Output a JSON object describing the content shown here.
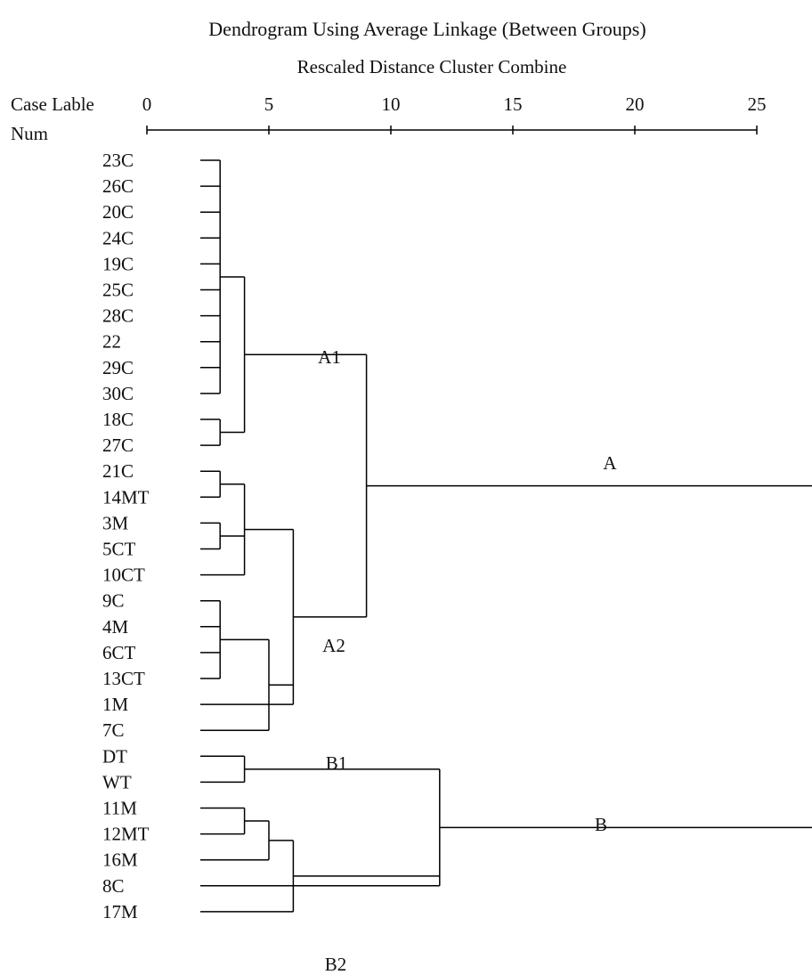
{
  "title": "Dendrogram Using Average Linkage (Between Groups)",
  "subtitle": "Rescaled Distance Cluster Combine",
  "header_case": "Case Lable",
  "header_num": "Num",
  "axis_ticks": [
    0,
    5,
    10,
    15,
    20,
    25
  ],
  "leaves": [
    "23C",
    "26C",
    "20C",
    "24C",
    "19C",
    "25C",
    "28C",
    "22",
    "29C",
    "30C",
    "18C",
    "27C",
    "21C",
    "14MT",
    "3M",
    "5CT",
    "10CT",
    "9C",
    "4M",
    "6CT",
    "13CT",
    "1M",
    "7C",
    "DT",
    "WT",
    "11M",
    "12MT",
    "16M",
    "8C",
    "17M"
  ],
  "cluster_labels": [
    "A1",
    "A2",
    "A",
    "B1",
    "B",
    "B2"
  ],
  "chart_data": {
    "type": "dendrogram",
    "title": "Dendrogram Using Average Linkage (Between Groups)",
    "xlabel": "Rescaled Distance Cluster Combine",
    "xlim": [
      0,
      25
    ],
    "ticks": [
      0,
      5,
      10,
      15,
      20,
      25
    ],
    "leaves": [
      "23C",
      "26C",
      "20C",
      "24C",
      "19C",
      "25C",
      "28C",
      "22",
      "29C",
      "30C",
      "18C",
      "27C",
      "21C",
      "14MT",
      "3M",
      "5CT",
      "10CT",
      "9C",
      "4M",
      "6CT",
      "13CT",
      "1M",
      "7C",
      "DT",
      "WT",
      "11M",
      "12MT",
      "16M",
      "8C",
      "17M"
    ],
    "merges": [
      {
        "children": [
          0,
          1,
          2,
          3,
          4,
          5,
          6,
          7,
          8,
          9
        ],
        "distance": 3.0
      },
      {
        "children": [
          10,
          11
        ],
        "distance": 3.0
      },
      {
        "children": [
          "m0",
          "m1"
        ],
        "distance": 4.0
      },
      {
        "children": [
          12,
          13
        ],
        "distance": 3.0
      },
      {
        "children": [
          14,
          15
        ],
        "distance": 3.0
      },
      {
        "children": [
          "m3",
          "m4",
          16
        ],
        "distance": 4.0
      },
      {
        "children": [
          17,
          18,
          19,
          20
        ],
        "distance": 3.0
      },
      {
        "children": [
          "m6",
          22
        ],
        "distance": 5.0
      },
      {
        "children": [
          "m5",
          21,
          "m7"
        ],
        "distance": 6.0
      },
      {
        "children": [
          "m2",
          "m8"
        ],
        "distance": 9.0
      },
      {
        "children": [
          23,
          24
        ],
        "distance": 4.0
      },
      {
        "children": [
          25,
          26
        ],
        "distance": 4.0
      },
      {
        "children": [
          "m11",
          27
        ],
        "distance": 5.0
      },
      {
        "children": [
          "m12",
          29
        ],
        "distance": 6.0
      },
      {
        "children": [
          "m10",
          "m13",
          28
        ],
        "distance": 12.0
      },
      {
        "children": [
          "m9",
          "m14"
        ],
        "distance": 27.5
      }
    ]
  }
}
